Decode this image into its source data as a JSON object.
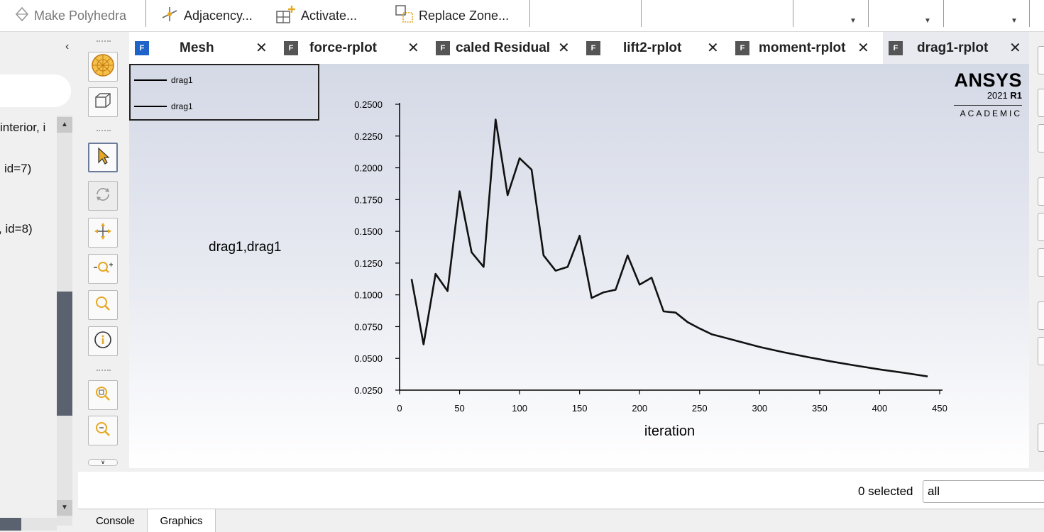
{
  "ribbon": {
    "items": [
      {
        "label": "Make Polyhedra",
        "icon": "polyhedra-icon",
        "enabled": false
      },
      {
        "label": "Adjacency...",
        "icon": "adjacency-icon",
        "enabled": true
      },
      {
        "label": "Activate...",
        "icon": "activate-icon",
        "enabled": true
      },
      {
        "label": "Replace Zone...",
        "icon": "replace-zone-icon",
        "enabled": true
      }
    ]
  },
  "tree": {
    "items": [
      "interior, i",
      "id=7)",
      ", id=8)"
    ]
  },
  "tabs": [
    {
      "label": "Mesh",
      "selected": false
    },
    {
      "label": "force-rplot",
      "selected": false
    },
    {
      "label": "caled Residual",
      "selected": false
    },
    {
      "label": "lift2-rplot",
      "selected": false
    },
    {
      "label": "moment-rplot",
      "selected": false
    },
    {
      "label": "drag1-rplot",
      "selected": true
    }
  ],
  "tab_icon_letter": "F",
  "plot": {
    "legend": [
      "drag1",
      "drag1"
    ],
    "series_label": "drag1,drag1",
    "brand": {
      "name": "ANSYS",
      "year": "2021",
      "release": "R1",
      "edition": "ACADEMIC"
    }
  },
  "chart_data": {
    "type": "line",
    "title": "",
    "xlabel": "iteration",
    "ylabel": "",
    "xlim": [
      0,
      450
    ],
    "ylim": [
      0.025,
      0.25
    ],
    "xticks": [
      "0",
      "50",
      "100",
      "150",
      "200",
      "250",
      "300",
      "350",
      "400",
      "450"
    ],
    "yticks": [
      "0.0250",
      "0.0500",
      "0.0750",
      "0.1000",
      "0.1250",
      "0.1500",
      "0.1750",
      "0.2000",
      "0.2250",
      "0.2500"
    ],
    "grid": false,
    "series": [
      {
        "name": "drag1",
        "x": [
          10,
          20,
          30,
          40,
          50,
          60,
          70,
          80,
          90,
          100,
          110,
          120,
          130,
          140,
          150,
          160,
          170,
          180,
          190,
          200,
          210,
          220,
          230,
          240,
          250,
          260,
          280,
          300,
          320,
          340,
          360,
          380,
          400,
          420,
          440
        ],
        "y": [
          0.1125,
          0.061,
          0.1165,
          0.103,
          0.1815,
          0.1335,
          0.122,
          0.238,
          0.1785,
          0.2075,
          0.1985,
          0.131,
          0.119,
          0.122,
          0.1465,
          0.0975,
          0.102,
          0.104,
          0.131,
          0.108,
          0.1135,
          0.087,
          0.086,
          0.0785,
          0.0735,
          0.069,
          0.064,
          0.059,
          0.0548,
          0.051,
          0.0475,
          0.0443,
          0.0413,
          0.0387,
          0.0358
        ]
      }
    ]
  },
  "selection": {
    "count_text": "0 selected",
    "filter_value": "all"
  },
  "bottom_tabs": [
    {
      "label": "Console",
      "selected": false
    },
    {
      "label": "Graphics",
      "selected": true
    }
  ]
}
